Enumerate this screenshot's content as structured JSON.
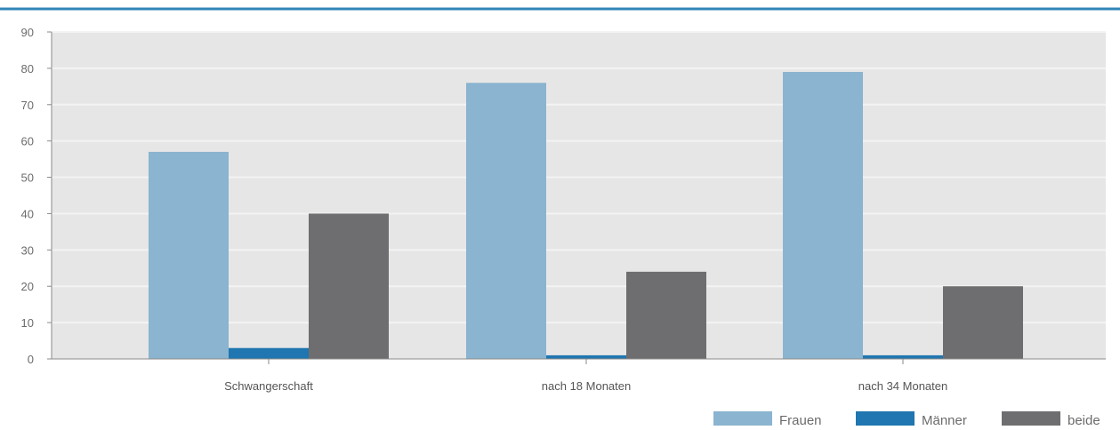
{
  "chart_data": {
    "type": "bar",
    "categories": [
      "Schwangerschaft",
      "nach 18 Monaten",
      "nach 34 Monaten"
    ],
    "series": [
      {
        "name": "Frauen",
        "values": [
          57,
          76,
          79
        ],
        "color": "#8ab4cf"
      },
      {
        "name": "Männer",
        "values": [
          3,
          1,
          1
        ],
        "color": "#1f76b0"
      },
      {
        "name": "beide",
        "values": [
          40,
          24,
          20
        ],
        "color": "#6e6e70"
      }
    ],
    "ylim": [
      0,
      90
    ],
    "yticks": [
      0,
      10,
      20,
      30,
      40,
      50,
      60,
      70,
      80,
      90
    ],
    "grid": true,
    "legend": "bottom-right",
    "colors": {
      "top_rule": "#2f86b8",
      "plot_background": "#e6e6e6",
      "gridline": "#f3f3f3",
      "axis": "#8a8a8a"
    }
  }
}
